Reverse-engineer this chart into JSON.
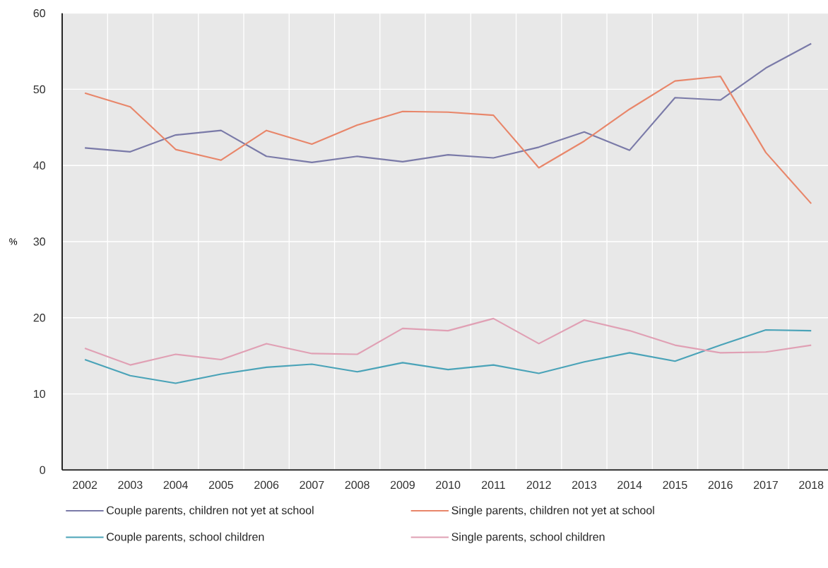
{
  "chart_data": {
    "type": "line",
    "ylabel": "%",
    "categories": [
      "2002",
      "2003",
      "2004",
      "2005",
      "2006",
      "2007",
      "2008",
      "2009",
      "2010",
      "2011",
      "2012",
      "2013",
      "2014",
      "2015",
      "2016",
      "2017",
      "2018"
    ],
    "series": [
      {
        "name": "Couple parents, children not yet at school",
        "color": "#7a7aa8",
        "values": [
          42.3,
          41.8,
          44.0,
          44.6,
          41.2,
          40.4,
          41.2,
          40.5,
          41.4,
          41.0,
          42.4,
          44.4,
          42.0,
          48.9,
          48.6,
          52.8,
          56.0
        ]
      },
      {
        "name": "Single parents, children not yet at school",
        "color": "#e8866a",
        "values": [
          49.5,
          47.7,
          42.1,
          40.7,
          44.6,
          42.8,
          45.3,
          47.1,
          47.0,
          46.6,
          39.7,
          43.2,
          47.4,
          51.1,
          51.7,
          41.7,
          35.0
        ]
      },
      {
        "name": "Couple parents, school children",
        "color": "#4aa3b8",
        "values": [
          14.5,
          12.4,
          11.4,
          12.6,
          13.5,
          13.9,
          12.9,
          14.1,
          13.2,
          13.8,
          12.7,
          14.2,
          15.4,
          14.3,
          16.4,
          18.4,
          18.3
        ]
      },
      {
        "name": "Single parents, school children",
        "color": "#e0a0b4",
        "values": [
          16.0,
          13.8,
          15.2,
          14.5,
          16.6,
          15.3,
          15.2,
          18.6,
          18.3,
          19.9,
          16.6,
          19.7,
          18.3,
          16.4,
          15.4,
          15.5,
          16.4
        ]
      }
    ],
    "ylim": [
      0,
      60
    ],
    "yticks": [
      0,
      10,
      20,
      30,
      40,
      50,
      60
    ],
    "grid": true,
    "legend": "bottom",
    "marker": "none",
    "line_style": "solid"
  }
}
